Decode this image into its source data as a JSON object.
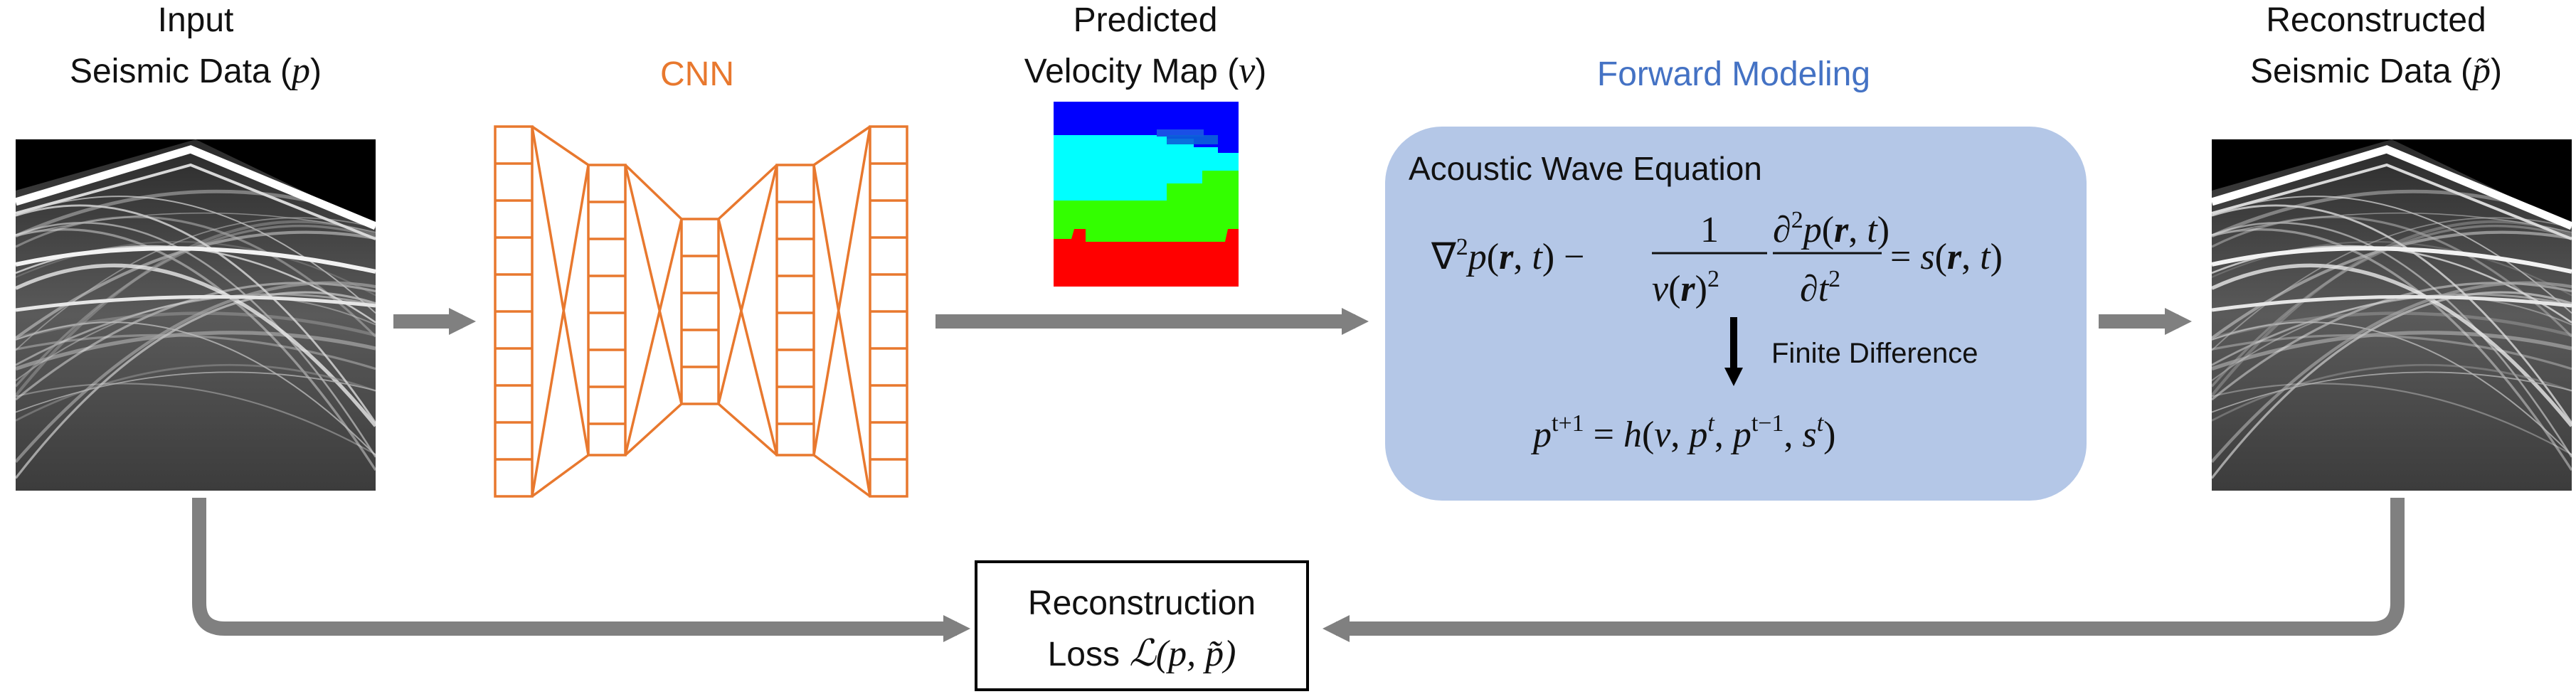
{
  "input": {
    "line1": "Input",
    "line2": "Seismic Data (",
    "symbol": "p",
    "close": ")"
  },
  "cnn": {
    "label": "CNN",
    "color": "#E8782E"
  },
  "predicted": {
    "line1": "Predicted",
    "line2": "Velocity Map (",
    "symbol": "v",
    "close": ")"
  },
  "forward": {
    "label": "Forward Modeling",
    "label_color": "#4472C4",
    "box_color": "#B4C7E7",
    "equation_title": "Acoustic Wave Equation",
    "method": "Finite Difference"
  },
  "reconstructed": {
    "line1": "Reconstructed",
    "line2": "Seismic Data (",
    "symbol": "p̃",
    "close": ")"
  },
  "loss": {
    "line1": "Reconstruction",
    "line2_prefix": "Loss ",
    "line2_math": "ℒ(p, p̃)"
  },
  "velocity_colors": [
    "#0000FF",
    "#00FFFF",
    "#33FF00",
    "#FF0000"
  ]
}
